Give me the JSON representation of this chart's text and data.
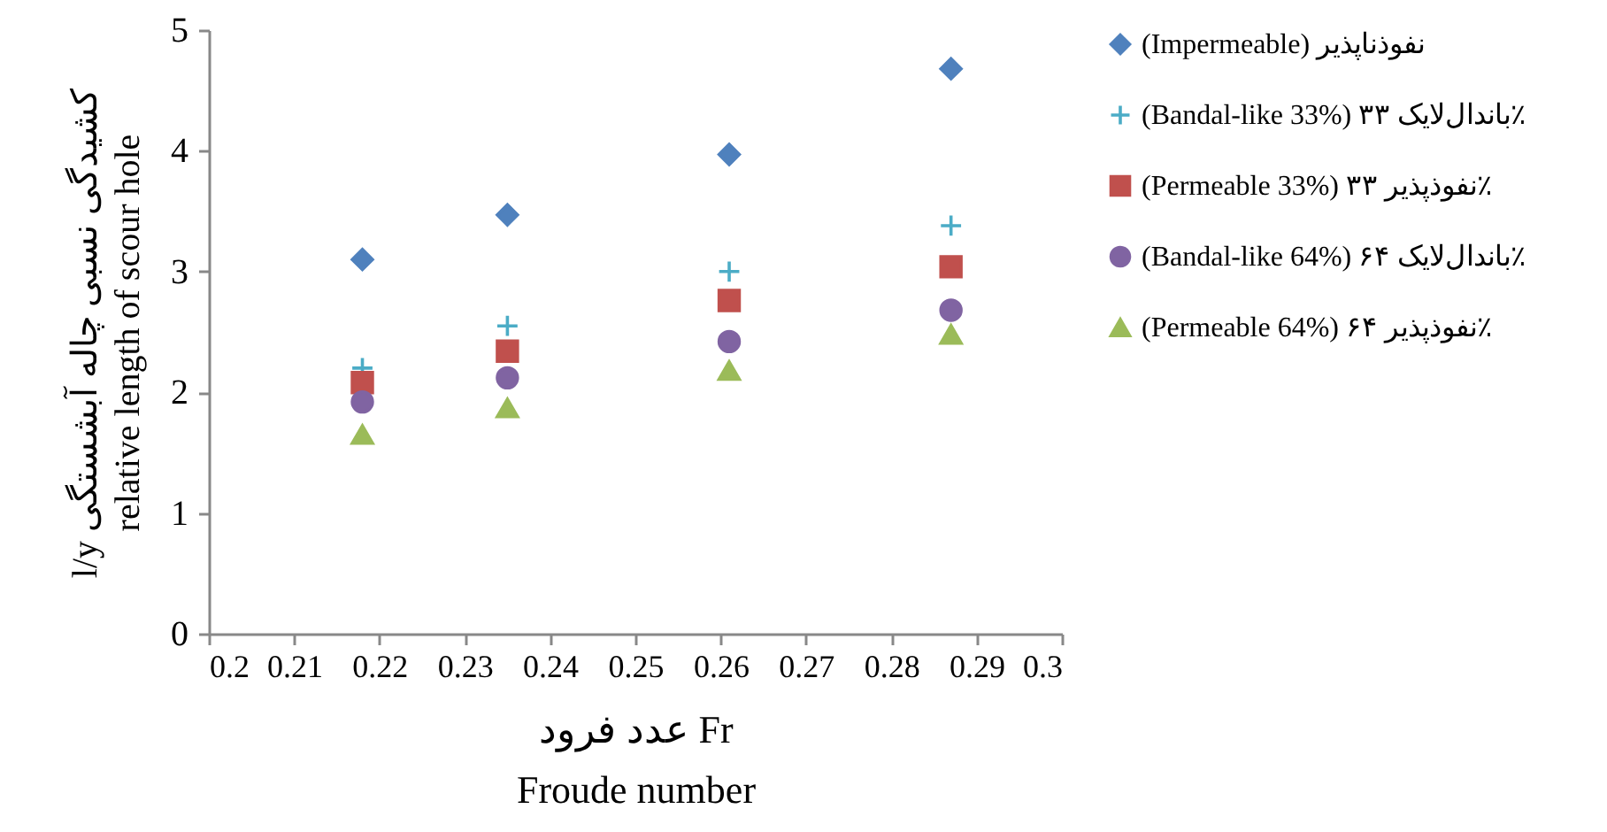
{
  "chart_data": {
    "type": "scatter",
    "xlabel": [
      "عدد فرود Fr",
      "Froude number"
    ],
    "ylabel": [
      "l/y کشیدگی نسبی چاله آبشستگی",
      "relative length of scour hole"
    ],
    "x": [
      0.218,
      0.235,
      0.261,
      0.287
    ],
    "xlim": [
      0.2,
      0.3
    ],
    "xticks": [
      0.2,
      0.21,
      0.22,
      0.23,
      0.24,
      0.25,
      0.26,
      0.27,
      0.28,
      0.29,
      0.3
    ],
    "ylim": [
      0,
      5
    ],
    "yticks": [
      0,
      1,
      2,
      3,
      4,
      5
    ],
    "grid": false,
    "legend": "right",
    "series": [
      {
        "name": "(Impermeable) نفوذناپذیر",
        "color": "#4f81bd",
        "marker": "diamond",
        "values": [
          3.1,
          3.47,
          3.97,
          4.68
        ]
      },
      {
        "name": "(Bandal-like 33%) باندال‌لایک ۳۳٪",
        "color": "#4bacc6",
        "marker": "cross",
        "values": [
          2.2,
          2.55,
          3.0,
          3.38
        ]
      },
      {
        "name": "(Permeable 33%) نفوذپذیر ۳۳٪",
        "color": "#c0504d",
        "marker": "square",
        "values": [
          2.08,
          2.34,
          2.76,
          3.04
        ]
      },
      {
        "name": "(Bandal-like 64%) باندال‌لایک ۶۴٪",
        "color": "#8064a2",
        "marker": "circle",
        "values": [
          1.92,
          2.12,
          2.42,
          2.68
        ]
      },
      {
        "name": "(Permeable 64%) نفوذپذیر ۶۴٪",
        "color": "#9bbb59",
        "marker": "triangle",
        "values": [
          1.65,
          1.87,
          2.18,
          2.48
        ]
      }
    ]
  }
}
